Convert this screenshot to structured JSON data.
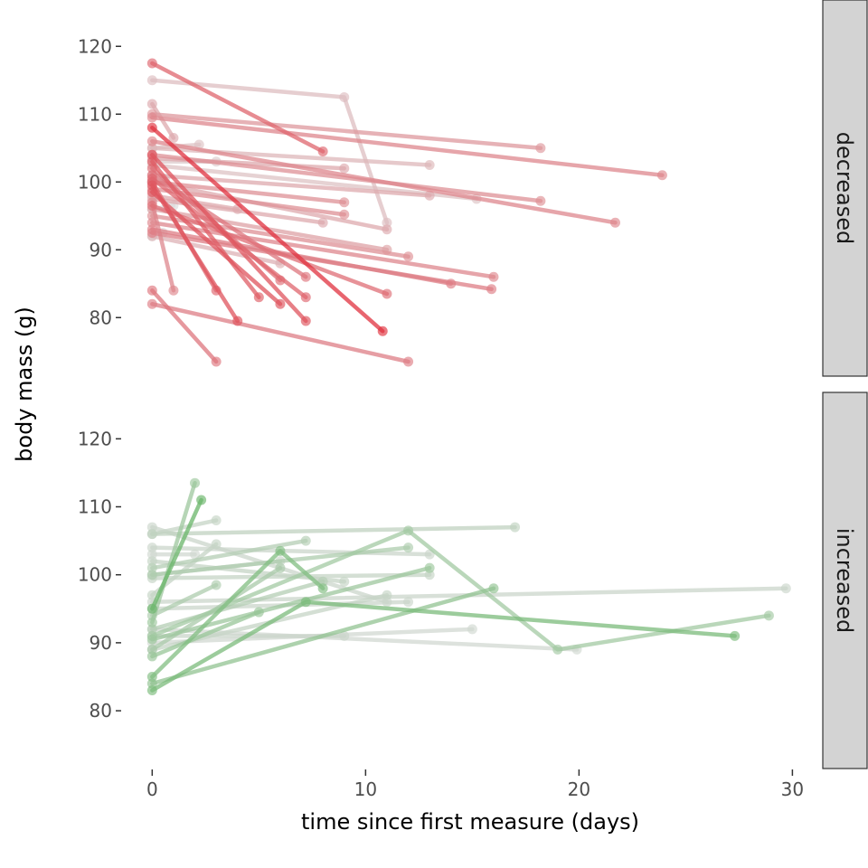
{
  "chart_data": {
    "type": "line",
    "xlabel": "time since first measure (days)",
    "ylabel": "body mass (g)",
    "x_ticks": [
      0,
      10,
      20,
      30
    ],
    "y_ticks": [
      80,
      90,
      100,
      110,
      120
    ],
    "xlim": [
      -1.2,
      31
    ],
    "colors": {
      "decreased": "#e0323f",
      "increased": "#6ab56a",
      "neutral": "#dcdcdc"
    },
    "facets": [
      {
        "label": "decreased",
        "ylim": [
          71.5,
          123.5
        ],
        "series": [
          {
            "points": [
              [
                0,
                108
              ],
              [
                10.8,
                78
              ]
            ],
            "t": 1.0
          },
          {
            "points": [
              [
                0,
                117.5
              ],
              [
                8,
                104.5
              ]
            ],
            "t": 0.7
          },
          {
            "points": [
              [
                0,
                115
              ],
              [
                9,
                112.5
              ],
              [
                11,
                94
              ]
            ],
            "t": 0.18
          },
          {
            "points": [
              [
                0,
                110
              ],
              [
                18.2,
                105
              ]
            ],
            "t": 0.4
          },
          {
            "points": [
              [
                0,
                109.5
              ],
              [
                23.9,
                101
              ]
            ],
            "t": 0.5
          },
          {
            "points": [
              [
                0,
                106
              ],
              [
                21.7,
                94
              ]
            ],
            "t": 0.5
          },
          {
            "points": [
              [
                0,
                105
              ],
              [
                13,
                102.5
              ]
            ],
            "t": 0.22
          },
          {
            "points": [
              [
                0,
                103.5
              ],
              [
                9,
                102
              ]
            ],
            "t": 0.3
          },
          {
            "points": [
              [
                0,
                104
              ],
              [
                18.2,
                97.2
              ]
            ],
            "t": 0.45
          },
          {
            "points": [
              [
                0,
                102.5
              ],
              [
                15.2,
                97.5
              ]
            ],
            "t": 0.15
          },
          {
            "points": [
              [
                0,
                101
              ],
              [
                13,
                98
              ]
            ],
            "t": 0.3
          },
          {
            "points": [
              [
                0,
                100
              ],
              [
                9,
                97
              ]
            ],
            "t": 0.45
          },
          {
            "points": [
              [
                0,
                99
              ],
              [
                9,
                95.2
              ]
            ],
            "t": 0.45
          },
          {
            "points": [
              [
                0,
                97.5
              ],
              [
                8,
                94
              ]
            ],
            "t": 0.3
          },
          {
            "points": [
              [
                0,
                100
              ],
              [
                11,
                93
              ]
            ],
            "t": 0.3
          },
          {
            "points": [
              [
                0,
                96
              ],
              [
                11,
                90
              ]
            ],
            "t": 0.35
          },
          {
            "points": [
              [
                0,
                95
              ],
              [
                12,
                89
              ]
            ],
            "t": 0.45
          },
          {
            "points": [
              [
                0,
                94
              ],
              [
                16,
                86
              ]
            ],
            "t": 0.5
          },
          {
            "points": [
              [
                0,
                93
              ],
              [
                14,
                85
              ]
            ],
            "t": 0.55
          },
          {
            "points": [
              [
                0,
                92.5
              ],
              [
                15.9,
                84.2
              ]
            ],
            "t": 0.55
          },
          {
            "points": [
              [
                0,
                96.5
              ],
              [
                11,
                83.5
              ]
            ],
            "t": 0.65
          },
          {
            "points": [
              [
                0,
                101
              ],
              [
                7.2,
                86
              ]
            ],
            "t": 0.6
          },
          {
            "points": [
              [
                0,
                103
              ],
              [
                5,
                83
              ]
            ],
            "t": 0.75
          },
          {
            "points": [
              [
                0,
                102
              ],
              [
                6,
                85.5
              ]
            ],
            "t": 0.65
          },
          {
            "points": [
              [
                0,
                98.5
              ],
              [
                6,
                82
              ]
            ],
            "t": 0.8
          },
          {
            "points": [
              [
                0,
                100.5
              ],
              [
                7.2,
                83
              ]
            ],
            "t": 0.7
          },
          {
            "points": [
              [
                0,
                104
              ],
              [
                7.2,
                79.5
              ]
            ],
            "t": 0.8
          },
          {
            "points": [
              [
                0,
                99.5
              ],
              [
                4,
                79.5
              ]
            ],
            "t": 0.8
          },
          {
            "points": [
              [
                0,
                100
              ],
              [
                3,
                84
              ]
            ],
            "t": 0.7
          },
          {
            "points": [
              [
                0,
                97
              ],
              [
                1,
                84
              ]
            ],
            "t": 0.5
          },
          {
            "points": [
              [
                0,
                84
              ],
              [
                3,
                73.5
              ]
            ],
            "t": 0.6
          },
          {
            "points": [
              [
                0,
                82
              ],
              [
                12,
                73.5
              ]
            ],
            "t": 0.55
          },
          {
            "points": [
              [
                0,
                111.5
              ],
              [
                1,
                106.5
              ]
            ],
            "t": 0.3
          },
          {
            "points": [
              [
                0,
                105
              ],
              [
                2.2,
                105.5
              ]
            ],
            "t": 0.15
          },
          {
            "points": [
              [
                0,
                103
              ],
              [
                3,
                103
              ]
            ],
            "t": 0.1
          },
          {
            "points": [
              [
                0,
                98
              ],
              [
                4,
                96
              ]
            ],
            "t": 0.3
          },
          {
            "points": [
              [
                0,
                92
              ],
              [
                6,
                88
              ]
            ],
            "t": 0.25
          },
          {
            "points": [
              [
                0,
                96
              ],
              [
                1,
                96.5
              ]
            ],
            "t": 0.0
          },
          {
            "points": [
              [
                0,
                100
              ],
              [
                0.6,
                100.5
              ]
            ],
            "t": 0.0
          },
          {
            "points": [
              [
                0,
                92
              ],
              [
                0.5,
                92.5
              ]
            ],
            "t": 0.0
          }
        ]
      },
      {
        "label": "increased",
        "ylim": [
          71.5,
          123.5
        ],
        "series": [
          {
            "points": [
              [
                0,
                95
              ],
              [
                2.3,
                111
              ]
            ],
            "t": 1.0
          },
          {
            "points": [
              [
                0,
                93
              ],
              [
                2,
                113.5
              ]
            ],
            "t": 0.55
          },
          {
            "points": [
              [
                0,
                83
              ],
              [
                7.2,
                96
              ],
              [
                27.3,
                91
              ]
            ],
            "t": 0.85
          },
          {
            "points": [
              [
                0,
                85
              ],
              [
                6,
                103.5
              ],
              [
                8,
                98
              ]
            ],
            "t": 0.8
          },
          {
            "points": [
              [
                0,
                88
              ],
              [
                5,
                94.5
              ]
            ],
            "t": 0.6
          },
          {
            "points": [
              [
                0,
                84
              ],
              [
                16,
                98
              ]
            ],
            "t": 0.65
          },
          {
            "points": [
              [
                0,
                91
              ],
              [
                12,
                106.5
              ],
              [
                19,
                89
              ],
              [
                28.9,
                94
              ]
            ],
            "t": 0.5
          },
          {
            "points": [
              [
                0,
                90.5
              ],
              [
                13,
                101
              ]
            ],
            "t": 0.55
          },
          {
            "points": [
              [
                0,
                89
              ],
              [
                6,
                101
              ]
            ],
            "t": 0.45
          },
          {
            "points": [
              [
                0,
                92
              ],
              [
                8,
                99
              ]
            ],
            "t": 0.35
          },
          {
            "points": [
              [
                0,
                94
              ],
              [
                3,
                98.5
              ]
            ],
            "t": 0.4
          },
          {
            "points": [
              [
                0,
                100
              ],
              [
                12,
                104
              ]
            ],
            "t": 0.4
          },
          {
            "points": [
              [
                0,
                101
              ],
              [
                7.2,
                105
              ]
            ],
            "t": 0.35
          },
          {
            "points": [
              [
                0,
                106
              ],
              [
                17,
                107
              ]
            ],
            "t": 0.25
          },
          {
            "points": [
              [
                0,
                99.5
              ],
              [
                13,
                100
              ]
            ],
            "t": 0.2
          },
          {
            "points": [
              [
                0,
                104
              ],
              [
                13,
                103
              ]
            ],
            "t": 0.15
          },
          {
            "points": [
              [
                0,
                102
              ],
              [
                9,
                99
              ]
            ],
            "t": 0.2
          },
          {
            "points": [
              [
                0,
                107
              ],
              [
                11,
                96
              ]
            ],
            "t": 0.15
          },
          {
            "points": [
              [
                0,
                106
              ],
              [
                3,
                108
              ]
            ],
            "t": 0.2
          },
          {
            "points": [
              [
                0,
                96
              ],
              [
                29.7,
                98
              ]
            ],
            "t": 0.15
          },
          {
            "points": [
              [
                0,
                95
              ],
              [
                12,
                96
              ]
            ],
            "t": 0.15
          },
          {
            "points": [
              [
                0,
                90
              ],
              [
                15,
                92
              ]
            ],
            "t": 0.1
          },
          {
            "points": [
              [
                0,
                91
              ],
              [
                9,
                91
              ]
            ],
            "t": 0.15
          },
          {
            "points": [
              [
                0,
                92
              ],
              [
                19.9,
                89
              ]
            ],
            "t": 0.1
          },
          {
            "points": [
              [
                0,
                89
              ],
              [
                11,
                97
              ]
            ],
            "t": 0.2
          },
          {
            "points": [
              [
                0,
                97
              ],
              [
                3,
                104.5
              ]
            ],
            "t": 0.2
          },
          {
            "points": [
              [
                0,
                103
              ],
              [
                2,
                103
              ]
            ],
            "t": 0.1
          },
          {
            "points": [
              [
                0,
                100
              ],
              [
                6,
                102
              ]
            ],
            "t": 0.15
          }
        ]
      }
    ]
  }
}
